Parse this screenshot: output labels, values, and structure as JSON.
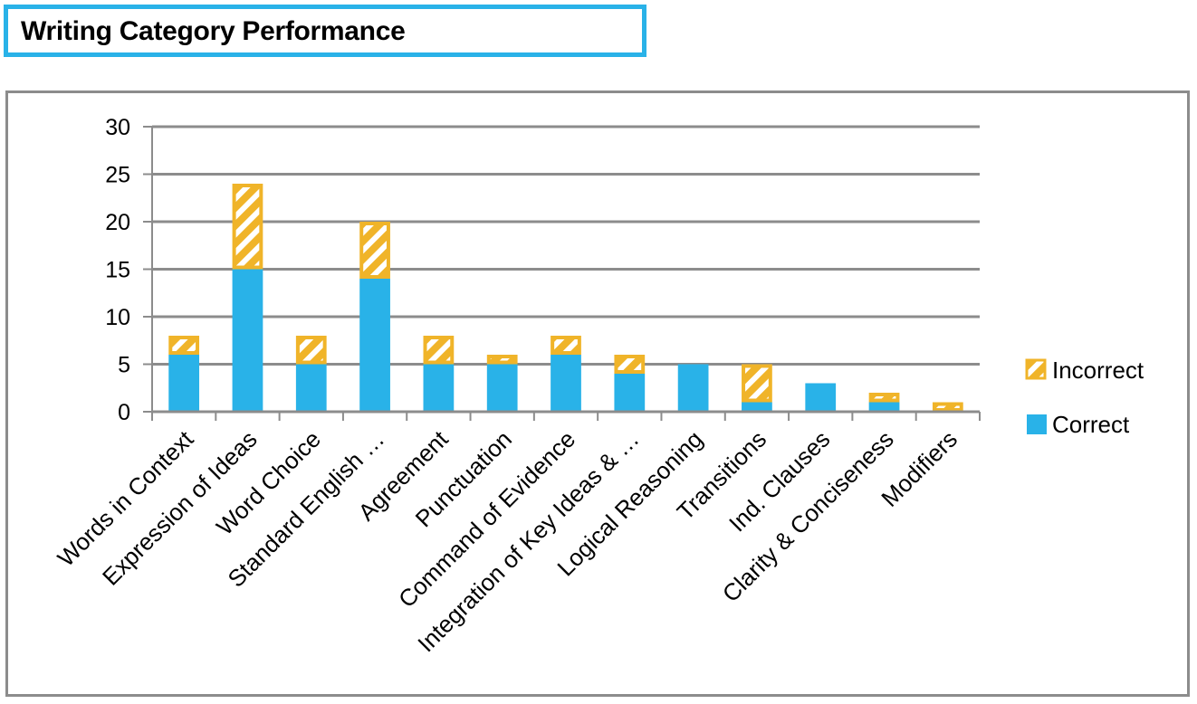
{
  "title": "Writing Category Performance",
  "chart_data": {
    "type": "bar",
    "stacked": true,
    "categories": [
      "Words in Context",
      "Expression of Ideas",
      "Word Choice",
      "Standard English …",
      "Agreement",
      "Punctuation",
      "Command of Evidence",
      "Integration of Key Ideas & …",
      "Logical Reasoning",
      "Transitions",
      "Ind. Clauses",
      "Clarity & Conciseness",
      "Modifiers"
    ],
    "series": [
      {
        "name": "Correct",
        "values": [
          6,
          15,
          5,
          14,
          5,
          5,
          6,
          4,
          5,
          1,
          3,
          1,
          0
        ]
      },
      {
        "name": "Incorrect",
        "values": [
          2,
          9,
          3,
          6,
          3,
          1,
          2,
          2,
          0,
          4,
          0,
          1,
          1
        ]
      }
    ],
    "yticks": [
      "0",
      "5",
      "10",
      "15",
      "20",
      "25",
      "30"
    ],
    "ylim": [
      0,
      30
    ],
    "grid": true,
    "legend_position": "right",
    "colors": {
      "Correct": "#29b2e8",
      "Incorrect": "#f0b429",
      "grid": "#8c8c8c"
    }
  }
}
